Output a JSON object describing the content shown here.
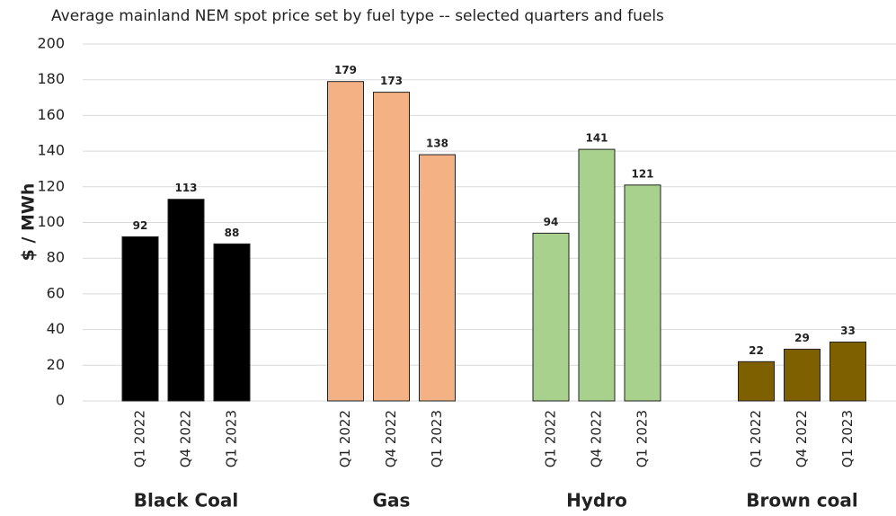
{
  "chart_data": {
    "type": "bar",
    "title": "Average mainland NEM spot price set by fuel type -- selected quarters and fuels",
    "y_label": "$ / MWh",
    "categories": [
      "Black Coal",
      "Gas",
      "Hydro",
      "Brown coal"
    ],
    "colors": [
      "#000000",
      "#f4b183",
      "#a9d18e",
      "#7f6000"
    ],
    "series": [
      {
        "name": "Q1 2022",
        "values": [
          92,
          179,
          94,
          22
        ]
      },
      {
        "name": "Q4 2022",
        "values": [
          113,
          173,
          141,
          29
        ]
      },
      {
        "name": "Q1 2023",
        "values": [
          88,
          138,
          121,
          33
        ]
      }
    ],
    "ylim": [
      0,
      200
    ],
    "yticks": [
      0,
      20,
      40,
      60,
      80,
      100,
      120,
      140,
      160,
      180,
      200
    ],
    "grid": true
  }
}
